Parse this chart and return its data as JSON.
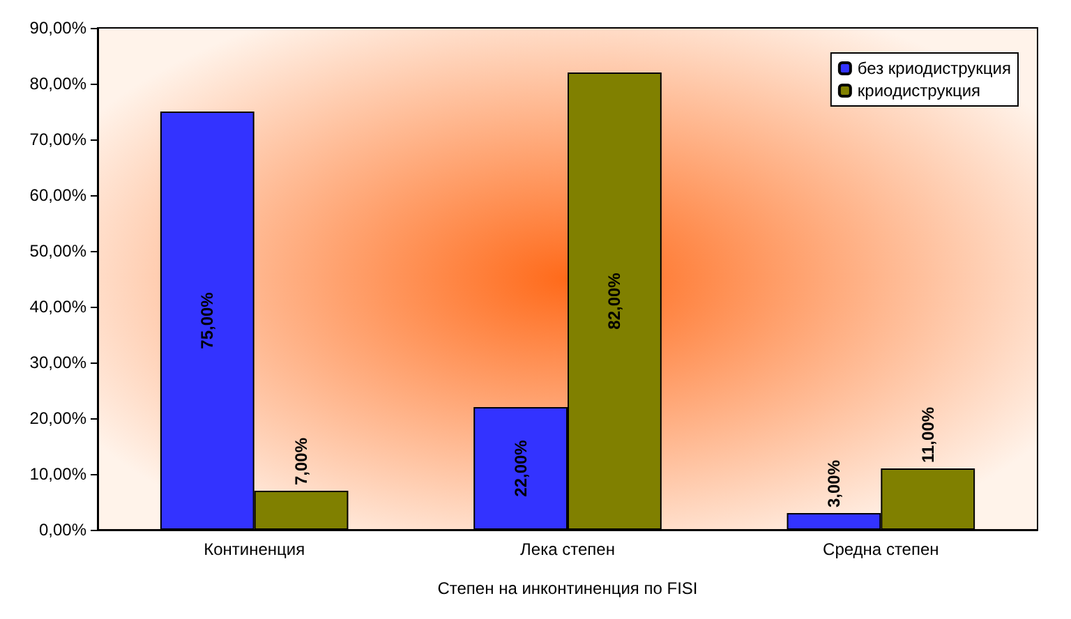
{
  "chart_data": {
    "type": "bar",
    "xlabel": "Степен на инконтиненция по FISI",
    "categories": [
      "Континенция",
      "Лека степен",
      "Средна степен"
    ],
    "series": [
      {
        "name": "без криодиструкция",
        "color": "#3333ff",
        "values": [
          75,
          22,
          3
        ],
        "value_labels": [
          "75,00%",
          "22,00%",
          "3,00%"
        ]
      },
      {
        "name": "криодиструкция",
        "color": "#808000",
        "values": [
          7,
          82,
          11
        ],
        "value_labels": [
          "7,00%",
          "82,00%",
          "11,00%"
        ]
      }
    ],
    "ylim": [
      0,
      90
    ],
    "yticks": [
      {
        "value": 0,
        "label": "0,00%"
      },
      {
        "value": 10,
        "label": "10,00%"
      },
      {
        "value": 20,
        "label": "20,00%"
      },
      {
        "value": 30,
        "label": "30,00%"
      },
      {
        "value": 40,
        "label": "40,00%"
      },
      {
        "value": 50,
        "label": "50,00%"
      },
      {
        "value": 60,
        "label": "60,00%"
      },
      {
        "value": 70,
        "label": "70,00%"
      },
      {
        "value": 80,
        "label": "80,00%"
      },
      {
        "value": 90,
        "label": "90,00%"
      }
    ],
    "legend": "top right",
    "grid": false
  }
}
